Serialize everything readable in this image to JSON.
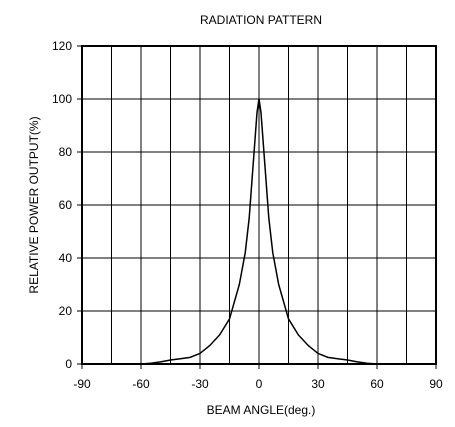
{
  "chart_data": {
    "type": "line",
    "title": "RADIATION PATTERN",
    "xlabel": "BEAM ANGLE(deg.)",
    "ylabel": "RELATIVE POWER OUTPUT(%)",
    "xlim": [
      -90,
      90
    ],
    "ylim": [
      0,
      120
    ],
    "xticks": [
      "-90",
      "-60",
      "-30",
      "0",
      "30",
      "60",
      "90"
    ],
    "yticks": [
      "0",
      "20",
      "40",
      "60",
      "80",
      "100",
      "120"
    ],
    "x_minor_step": 15,
    "grid": true,
    "series": [
      {
        "x": [
          -90,
          -60,
          -55,
          -50,
          -45,
          -40,
          -35,
          -30,
          -25,
          -20,
          -15,
          -10,
          -7,
          -5,
          -3,
          -1,
          0,
          1,
          3,
          5,
          7,
          10,
          15,
          20,
          25,
          30,
          35,
          40,
          45,
          50,
          55,
          60,
          90
        ],
        "values": [
          0,
          0,
          0.3,
          0.8,
          1.5,
          2.0,
          2.5,
          4.0,
          7.0,
          11.0,
          17.0,
          30.0,
          42.0,
          55.0,
          75.0,
          95.0,
          100.0,
          95.0,
          75.0,
          55.0,
          42.0,
          30.0,
          17.0,
          11.0,
          7.0,
          4.0,
          2.5,
          2.0,
          1.5,
          0.8,
          0.3,
          0,
          0
        ]
      }
    ]
  }
}
